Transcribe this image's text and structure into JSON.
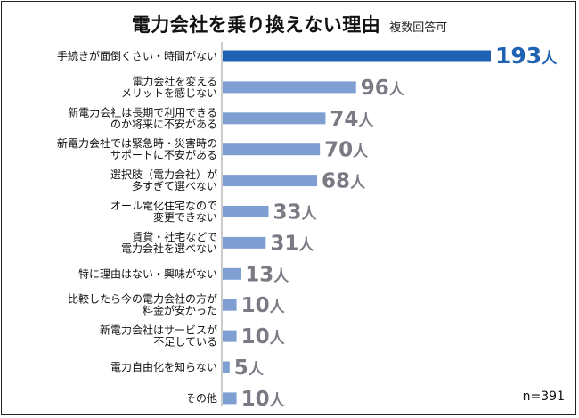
{
  "chart_data": {
    "type": "bar",
    "orientation": "horizontal",
    "title": "電力会社を乗り換えない理由",
    "subtitle": "複数回答可",
    "note": "n=391",
    "unit": "人",
    "categories": [
      [
        "手続きが面倒くさい・時間がない"
      ],
      [
        "電力会社を変える",
        "メリットを感じない"
      ],
      [
        "新電力会社は長期で利用できる",
        "のか将来に不安がある"
      ],
      [
        "新電力会社では緊急時・災害時の",
        "サポートに不安がある"
      ],
      [
        "選択肢（電力会社）が",
        "多すぎて選べない"
      ],
      [
        "オール電化住宅なので",
        "変更できない"
      ],
      [
        "賃貸・社宅などで",
        "電力会社を選べない"
      ],
      [
        "特に理由はない・興味がない"
      ],
      [
        "比較したら今の電力会社の方が",
        "料金が安かった"
      ],
      [
        "新電力会社はサービスが",
        "不足している"
      ],
      [
        "電力自由化を知らない"
      ],
      [
        "その他"
      ]
    ],
    "values": [
      193,
      96,
      74,
      70,
      68,
      33,
      31,
      13,
      10,
      10,
      5,
      10
    ],
    "colors": {
      "highlight": "#1f62b3",
      "bar": "#7f9fd3",
      "highlight_label": "#1f62b3",
      "label": "#7a7a85"
    }
  }
}
